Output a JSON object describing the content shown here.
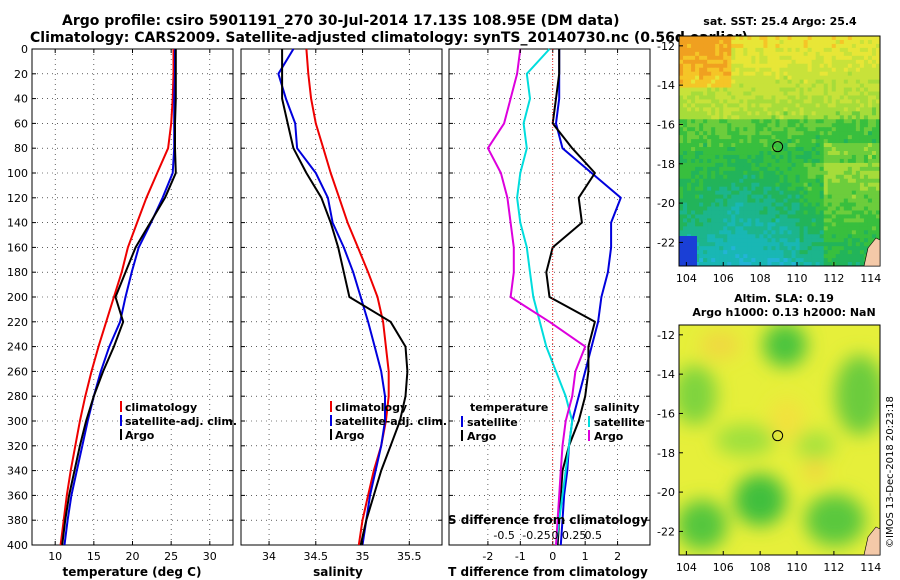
{
  "header": {
    "title_line1": "Argo profile: csiro 5901191_270 30-Jul-2014 17.13S 108.95E (DM data)",
    "title_line2": "Climatology: CARS2009. Satellite-adjusted climatology: synTS_20140730.nc (0.56d earlier)"
  },
  "colors": {
    "climatology": "#ee0000",
    "satellite": "#0000dd",
    "argo": "#000000",
    "t_diff": "#00dddd",
    "s_diff": "#dd00dd",
    "grid": "#000000"
  },
  "chart_data": [
    {
      "id": "temperature",
      "type": "line",
      "xlabel": "temperature (deg C)",
      "ylabel": "",
      "xlim": [
        7,
        33
      ],
      "ylim": [
        400,
        0
      ],
      "xticks": [
        10,
        15,
        20,
        25,
        30
      ],
      "yticks": [
        0,
        20,
        40,
        60,
        80,
        100,
        120,
        140,
        160,
        180,
        200,
        220,
        240,
        260,
        280,
        300,
        320,
        340,
        360,
        380,
        400
      ],
      "legend": [
        "climatology",
        "satellite-adj. clim.",
        "Argo"
      ],
      "series": [
        {
          "name": "climatology",
          "color": "climatology",
          "x": [
            25.3,
            25.3,
            25.2,
            25.0,
            24.6,
            23.2,
            21.8,
            20.6,
            19.4,
            18.6,
            17.6,
            16.6,
            15.6,
            14.7,
            13.9,
            13.2,
            12.6,
            12.0,
            11.5,
            11.1,
            10.7
          ],
          "y": [
            0,
            20,
            40,
            60,
            80,
            100,
            120,
            140,
            160,
            180,
            200,
            220,
            240,
            260,
            280,
            300,
            320,
            340,
            360,
            380,
            400
          ]
        },
        {
          "name": "satellite-adj. clim.",
          "color": "satellite",
          "x": [
            25.5,
            25.5,
            25.4,
            25.4,
            25.4,
            25.2,
            23.9,
            22.4,
            20.8,
            19.9,
            19.1,
            18.4,
            17.0,
            15.9,
            15.0,
            14.2,
            13.5,
            12.8,
            12.1,
            11.6,
            11.2
          ],
          "y": [
            0,
            20,
            40,
            60,
            80,
            100,
            120,
            140,
            160,
            180,
            200,
            220,
            240,
            260,
            280,
            300,
            320,
            340,
            360,
            380,
            400
          ]
        },
        {
          "name": "Argo",
          "color": "argo",
          "x": [
            25.6,
            25.6,
            25.6,
            25.5,
            25.5,
            25.6,
            24.2,
            22.3,
            20.4,
            19.1,
            17.8,
            18.8,
            17.6,
            16.2,
            15.0,
            14.0,
            13.2,
            12.5,
            11.8,
            11.3,
            10.9
          ],
          "y": [
            0,
            20,
            40,
            60,
            80,
            100,
            120,
            140,
            160,
            180,
            200,
            220,
            240,
            260,
            280,
            300,
            320,
            340,
            360,
            380,
            400
          ]
        }
      ]
    },
    {
      "id": "salinity",
      "type": "line",
      "xlabel": "salinity",
      "ylabel": "",
      "xlim": [
        33.7,
        35.85
      ],
      "ylim": [
        400,
        0
      ],
      "xticks": [
        34,
        34.5,
        35,
        35.5
      ],
      "xticklabels": [
        "34",
        "34.5",
        "35",
        "35.5"
      ],
      "legend": [
        "climatology",
        "satellite-adj. clim.",
        "Argo"
      ],
      "series": [
        {
          "name": "climatology",
          "color": "climatology",
          "x": [
            34.4,
            34.42,
            34.45,
            34.5,
            34.58,
            34.66,
            34.75,
            34.84,
            34.95,
            35.06,
            35.16,
            35.22,
            35.25,
            35.28,
            35.28,
            35.25,
            35.2,
            35.12,
            35.06,
            35.0,
            34.96
          ],
          "y": [
            0,
            20,
            40,
            60,
            80,
            100,
            120,
            140,
            160,
            180,
            200,
            220,
            240,
            260,
            280,
            300,
            320,
            340,
            360,
            380,
            400
          ]
        },
        {
          "name": "satellite-adj. clim.",
          "color": "satellite",
          "x": [
            34.26,
            34.1,
            34.18,
            34.28,
            34.3,
            34.5,
            34.63,
            34.68,
            34.8,
            34.9,
            34.98,
            35.06,
            35.13,
            35.2,
            35.24,
            35.24,
            35.2,
            35.14,
            35.08,
            35.04,
            35.0
          ],
          "y": [
            0,
            20,
            40,
            60,
            80,
            100,
            120,
            140,
            160,
            180,
            200,
            220,
            240,
            260,
            280,
            300,
            320,
            340,
            360,
            380,
            400
          ]
        },
        {
          "name": "Argo",
          "color": "argo",
          "x": [
            34.14,
            34.14,
            34.14,
            34.2,
            34.26,
            34.4,
            34.56,
            34.66,
            34.74,
            34.8,
            34.86,
            35.3,
            35.46,
            35.48,
            35.46,
            35.4,
            35.3,
            35.2,
            35.12,
            35.04,
            34.98
          ],
          "y": [
            0,
            20,
            40,
            60,
            80,
            100,
            120,
            140,
            160,
            180,
            200,
            220,
            240,
            260,
            280,
            300,
            320,
            340,
            360,
            380,
            400
          ]
        }
      ]
    },
    {
      "id": "difference",
      "type": "line",
      "xlabel": "T difference from climatology",
      "xlabel_top": "S difference from climatology",
      "xlim": [
        -3.2,
        3.0
      ],
      "ylim": [
        400,
        0
      ],
      "xticks": [
        -2,
        -1,
        0,
        1,
        2
      ],
      "xticklabels": [
        "-2",
        "-1",
        "0",
        "1",
        "2"
      ],
      "s_ticks_at": [
        -1.5,
        -0.5,
        0.5,
        1.25
      ],
      "s_ticklabels": [
        "-0.5",
        "-0.25",
        "0 0.25",
        "0.5"
      ],
      "legend_left_title": "temperature",
      "legend_right_title": "salinity",
      "legend": [
        "satellite",
        "Argo",
        "satellite",
        "Argo"
      ],
      "series": [
        {
          "name": "T satellite",
          "color": "satellite",
          "x": [
            0.2,
            0.2,
            0.2,
            0.1,
            0.3,
            1.2,
            2.1,
            1.8,
            1.8,
            1.7,
            1.5,
            1.4,
            1.2,
            1.0,
            0.8,
            0.6,
            0.5,
            0.45,
            0.35,
            0.3,
            0.25
          ],
          "y": [
            0,
            20,
            40,
            60,
            80,
            100,
            120,
            140,
            160,
            180,
            200,
            220,
            240,
            260,
            280,
            300,
            320,
            340,
            360,
            380,
            400
          ]
        },
        {
          "name": "T Argo",
          "color": "argo",
          "x": [
            0.2,
            0.2,
            0.1,
            0.0,
            0.6,
            1.3,
            0.8,
            0.9,
            0.0,
            -0.2,
            -0.1,
            1.3,
            1.1,
            1.1,
            1.0,
            0.8,
            0.5,
            0.3,
            0.25,
            0.2,
            0.15
          ],
          "y": [
            0,
            20,
            40,
            60,
            80,
            100,
            120,
            140,
            160,
            180,
            200,
            220,
            240,
            260,
            280,
            300,
            320,
            340,
            360,
            380,
            400
          ]
        },
        {
          "name": "S satellite",
          "color": "t_diff",
          "x": [
            -0.1,
            -0.8,
            -0.7,
            -0.9,
            -0.8,
            -1.0,
            -1.1,
            -1.0,
            -0.8,
            -0.7,
            -0.6,
            -0.4,
            -0.2,
            0.1,
            0.4,
            0.6,
            0.5,
            0.4,
            0.3,
            0.2,
            0.1
          ],
          "y": [
            0,
            20,
            40,
            60,
            80,
            100,
            120,
            140,
            160,
            180,
            200,
            220,
            240,
            260,
            280,
            300,
            320,
            340,
            360,
            380,
            400
          ]
        },
        {
          "name": "S Argo",
          "color": "s_diff",
          "x": [
            -1.0,
            -1.1,
            -1.3,
            -1.5,
            -2.0,
            -1.6,
            -1.4,
            -1.3,
            -1.2,
            -1.2,
            -1.3,
            -0.1,
            1.0,
            0.7,
            0.6,
            0.4,
            0.3,
            0.25,
            0.2,
            0.15,
            0.1
          ],
          "y": [
            0,
            20,
            40,
            60,
            80,
            100,
            120,
            140,
            160,
            180,
            200,
            220,
            240,
            260,
            280,
            300,
            320,
            340,
            360,
            380,
            400
          ]
        }
      ]
    }
  ],
  "maps": {
    "sst": {
      "title": "sat. SST: 25.4 Argo: 25.4",
      "xticks": [
        "104",
        "106",
        "108",
        "110",
        "112",
        "114"
      ],
      "yticks": [
        "-12",
        "-14",
        "-16",
        "-18",
        "-20",
        "-22"
      ]
    },
    "sla": {
      "title_line1": "Altim. SLA: 0.19",
      "title_line2": "Argo h1000: 0.13 h2000: NaN",
      "xticks": [
        "104",
        "106",
        "108",
        "110",
        "112",
        "114"
      ],
      "yticks": [
        "-12",
        "-14",
        "-16",
        "-18",
        "-20",
        "-22"
      ]
    },
    "profile_location": {
      "lon": 108.95,
      "lat": -17.13
    },
    "lon_range": [
      103.6,
      114.5
    ],
    "lat_range": [
      -11.5,
      -23.2
    ]
  },
  "stamp": "©IMOS 13-Dec-2018 20:23:18"
}
